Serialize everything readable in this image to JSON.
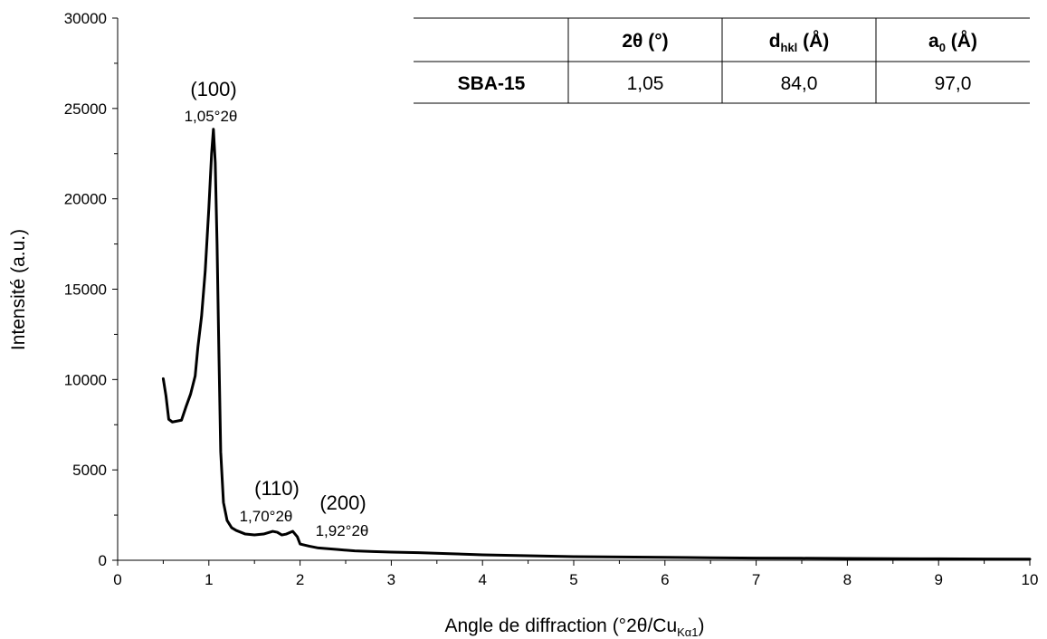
{
  "chart_data": {
    "type": "line",
    "title": "",
    "xlabel": "Angle de diffraction (°2θ/Cu",
    "xlabel_subscript": "Kα1",
    "xlabel_suffix": ")",
    "ylabel": "Intensité (a.u.)",
    "xlim": [
      0,
      10
    ],
    "ylim": [
      0,
      30000
    ],
    "x_ticks": [
      "0",
      "1",
      "2",
      "3",
      "4",
      "5",
      "6",
      "7",
      "8",
      "9",
      "10"
    ],
    "y_ticks": [
      "0",
      "5000",
      "10000",
      "15000",
      "20000",
      "25000",
      "30000"
    ],
    "grid": false,
    "legend": "none",
    "line_color": "#000000",
    "series": [
      {
        "x": [
          0.5,
          0.53,
          0.56,
          0.6,
          0.65,
          0.7,
          0.75,
          0.8,
          0.85,
          0.88,
          0.92,
          0.96,
          1.0,
          1.03,
          1.05,
          1.07,
          1.09,
          1.11,
          1.13,
          1.16,
          1.2,
          1.25,
          1.3,
          1.4,
          1.5,
          1.6,
          1.7,
          1.75,
          1.8,
          1.85,
          1.92,
          1.97,
          2.0,
          2.1,
          2.2,
          2.4,
          2.6,
          2.8,
          3.0,
          3.3,
          3.6,
          4.0,
          4.5,
          5.0,
          5.5,
          6.0,
          6.5,
          7.0,
          7.5,
          8.0,
          8.5,
          9.0,
          9.5,
          10.0
        ],
        "values": [
          10050,
          9100,
          7800,
          7650,
          7700,
          7750,
          8500,
          9200,
          10200,
          11800,
          13500,
          16000,
          19500,
          22500,
          23850,
          22000,
          17500,
          11500,
          6000,
          3200,
          2200,
          1800,
          1650,
          1450,
          1400,
          1450,
          1600,
          1550,
          1400,
          1450,
          1600,
          1300,
          900,
          780,
          680,
          600,
          520,
          480,
          450,
          420,
          370,
          300,
          250,
          200,
          180,
          160,
          140,
          120,
          110,
          100,
          90,
          80,
          70,
          60
        ]
      }
    ],
    "annotations": [
      {
        "label": "(100)",
        "value": "1,05°2θ",
        "x": 1.05,
        "y": 23850
      },
      {
        "label": "(110)",
        "value": "1,70°2θ",
        "x": 1.7,
        "y": 1600
      },
      {
        "label": "(200)",
        "value": "1,92°2θ",
        "x": 1.92,
        "y": 1600
      }
    ],
    "table": {
      "headers": [
        "",
        "2θ (°)",
        "d",
        "a"
      ],
      "header_subscripts": [
        "",
        "",
        "hkl",
        "0"
      ],
      "header_units": [
        "",
        "",
        " (Å)",
        " (Å)"
      ],
      "rows": [
        [
          "SBA-15",
          "1,05",
          "84,0",
          "97,0"
        ]
      ]
    }
  }
}
